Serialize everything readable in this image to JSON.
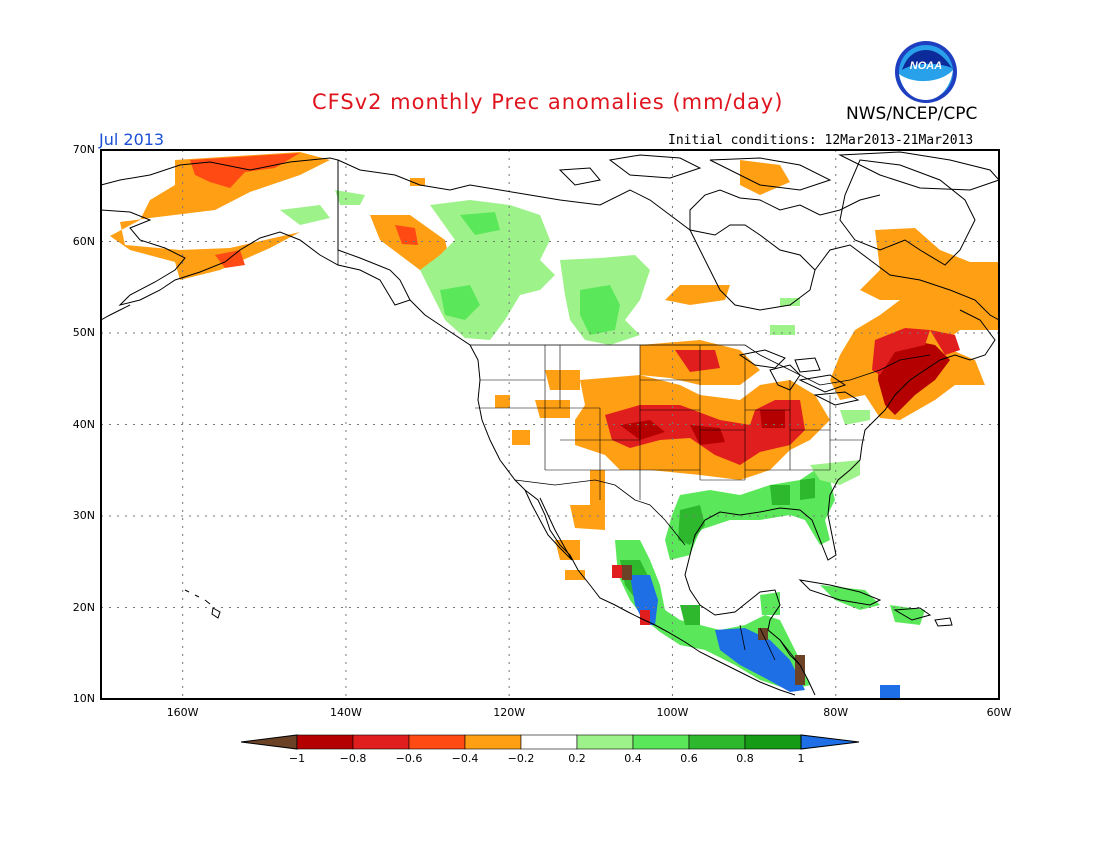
{
  "header": {
    "title": "CFSv2 monthly Prec anomalies (mm/day)",
    "agency": "NWS/NCEP/CPC",
    "valid_month": "Jul 2013",
    "initial_conditions": "Initial conditions: 12Mar2013-21Mar2013",
    "logo_text": "NOAA"
  },
  "map": {
    "lat_labels": [
      "70N",
      "60N",
      "50N",
      "40N",
      "30N",
      "20N",
      "10N"
    ],
    "lon_labels": [
      "160W",
      "140W",
      "120W",
      "100W",
      "80W",
      "60W"
    ],
    "region": "North America",
    "lat_range": [
      10,
      70
    ],
    "lon_range": [
      -170,
      -60
    ]
  },
  "colorbar": {
    "tick_labels": [
      "−1",
      "−0.8",
      "−0.6",
      "−0.4",
      "−0.2",
      "0.2",
      "0.4",
      "0.6",
      "0.8",
      "1"
    ],
    "colors": [
      "#6b4226",
      "#b40000",
      "#e01e1e",
      "#ff4a14",
      "#ff9f14",
      "#ffffff",
      "#9ef28a",
      "#5ae85a",
      "#2eb82e",
      "#159b15",
      "#1e6ee6"
    ]
  },
  "anomaly_regions": [
    {
      "name": "Alaska",
      "category": "dry",
      "color": "#ff9f14"
    },
    {
      "name": "Alaska coast",
      "category": "very-dry",
      "color": "#ff4a14"
    },
    {
      "name": "Northern Canada",
      "category": "dry",
      "color": "#ff9f14"
    },
    {
      "name": "Central Canada",
      "category": "wet",
      "color": "#9ef28a"
    },
    {
      "name": "British Columbia",
      "category": "wet",
      "color": "#5ae85a"
    },
    {
      "name": "Northern Plains",
      "category": "very-dry",
      "color": "#e01e1e"
    },
    {
      "name": "Central Plains",
      "category": "very-dry",
      "color": "#e01e1e"
    },
    {
      "name": "Ohio Valley",
      "category": "very-dry",
      "color": "#e01e1e"
    },
    {
      "name": "Northeast US",
      "category": "extreme-dry",
      "color": "#b40000"
    },
    {
      "name": "Quebec / Maritimes",
      "category": "dry",
      "color": "#ff9f14"
    },
    {
      "name": "Gulf Coast",
      "category": "wet",
      "color": "#5ae85a"
    },
    {
      "name": "Southeast US",
      "category": "wet",
      "color": "#9ef28a"
    },
    {
      "name": "Mexico Pacific coast",
      "category": "extreme-wet",
      "color": "#1e6ee6"
    },
    {
      "name": "Central America",
      "category": "extreme-wet",
      "color": "#1e6ee6"
    },
    {
      "name": "Caribbean",
      "category": "wet",
      "color": "#5ae85a"
    }
  ]
}
